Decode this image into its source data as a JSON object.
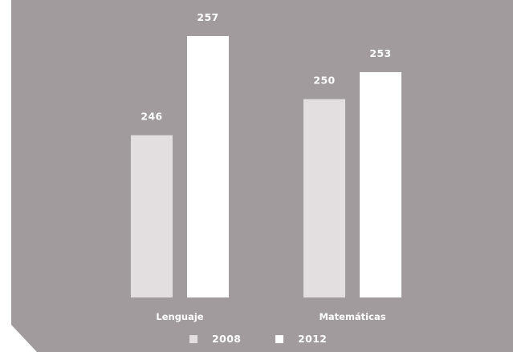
{
  "chart_data": {
    "type": "bar",
    "categories": [
      "Lenguaje",
      "Matemáticas"
    ],
    "series": [
      {
        "name": "2008",
        "values": [
          246,
          250
        ],
        "color": "#e3dfe1"
      },
      {
        "name": "2012",
        "values": [
          257,
          253
        ],
        "color": "#ffffff"
      }
    ],
    "ylim": [
      228,
      261
    ],
    "grid": false,
    "legend": "bottom",
    "background": "#a19b9d"
  }
}
